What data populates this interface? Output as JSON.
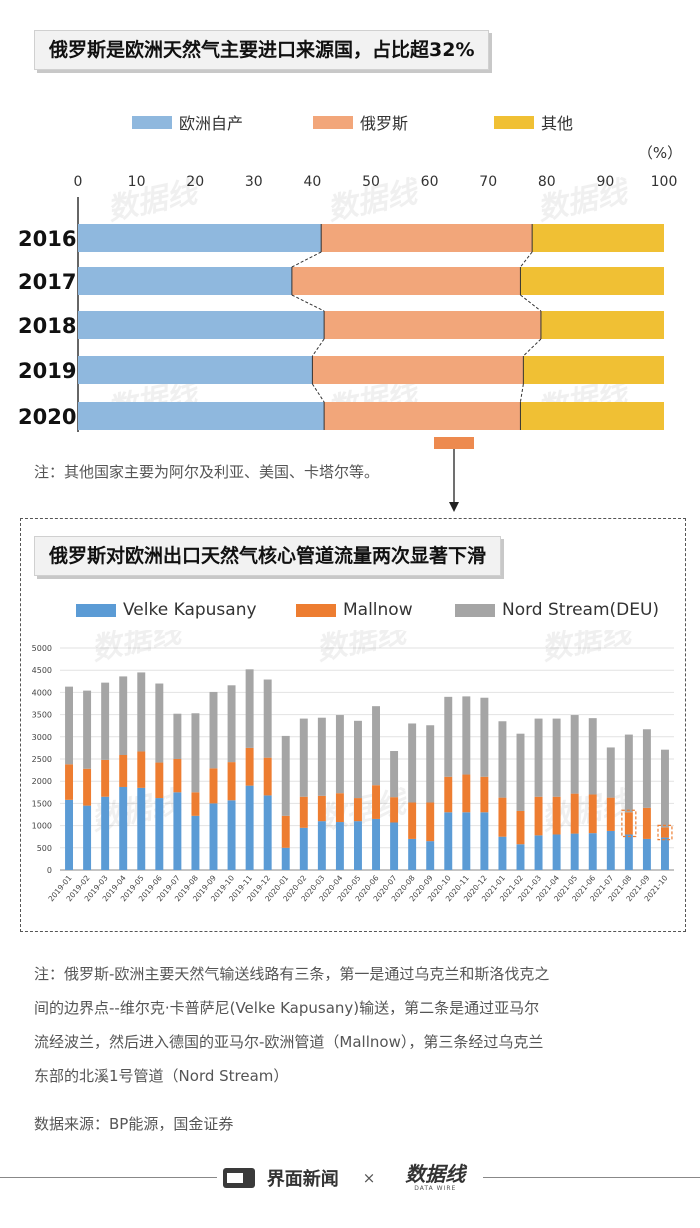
{
  "chart_data": [
    {
      "type": "bar",
      "orientation": "horizontal",
      "stacked": true,
      "title": "俄罗斯是欧洲天然气主要进口来源国，占比超32%",
      "unit": "（%）",
      "categories": [
        "2016",
        "2017",
        "2018",
        "2019",
        "2020"
      ],
      "xlim": [
        0,
        100
      ],
      "xticks": [
        0,
        10,
        20,
        30,
        40,
        50,
        60,
        70,
        80,
        90,
        100
      ],
      "series": [
        {
          "name": "欧洲自产",
          "color": "#8fb8de",
          "values": [
            41.5,
            36.5,
            42.0,
            40.0,
            42.0
          ]
        },
        {
          "name": "俄罗斯",
          "color": "#f2a67a",
          "values": [
            36.0,
            39.0,
            37.0,
            36.0,
            33.5
          ]
        },
        {
          "name": "其他",
          "color": "#f0c034",
          "values": [
            22.5,
            24.5,
            21.0,
            24.0,
            24.5
          ]
        }
      ],
      "legend_position": "top",
      "note": "注：其他国家主要为阿尔及利亚、美国、卡塔尔等。"
    },
    {
      "type": "bar",
      "stacked": true,
      "title": "俄罗斯对欧洲出口天然气核心管道流量两次显著下滑",
      "categories": [
        "2019-01",
        "2019-02",
        "2019-03",
        "2019-04",
        "2019-05",
        "2019-06",
        "2019-07",
        "2019-08",
        "2019-09",
        "2019-10",
        "2019-11",
        "2019-12",
        "2020-01",
        "2020-02",
        "2020-03",
        "2020-04",
        "2020-05",
        "2020-06",
        "2020-07",
        "2020-08",
        "2020-09",
        "2020-10",
        "2020-11",
        "2020-12",
        "2021-01",
        "2021-02",
        "2021-03",
        "2021-04",
        "2021-05",
        "2021-06",
        "2021-07",
        "2021-08",
        "2021-09",
        "2021-10"
      ],
      "ylim": [
        0,
        5000
      ],
      "yticks": [
        0,
        500,
        1000,
        1500,
        2000,
        2500,
        3000,
        3500,
        4000,
        4500,
        5000
      ],
      "series": [
        {
          "name": "Velke Kapusany",
          "color": "#5b9bd5",
          "values": [
            1580,
            1450,
            1650,
            1870,
            1850,
            1620,
            1750,
            1220,
            1500,
            1570,
            1900,
            1680,
            500,
            950,
            1100,
            1080,
            1100,
            1150,
            1070,
            700,
            650,
            1300,
            1300,
            1300,
            750,
            580,
            780,
            800,
            820,
            830,
            880,
            800,
            700,
            730
          ]
        },
        {
          "name": "Mallnow",
          "color": "#ed7d31",
          "values": [
            800,
            830,
            830,
            720,
            820,
            800,
            750,
            530,
            790,
            860,
            850,
            850,
            720,
            700,
            570,
            650,
            520,
            760,
            570,
            820,
            870,
            800,
            850,
            800,
            880,
            750,
            870,
            850,
            900,
            870,
            750,
            500,
            700,
            230
          ]
        },
        {
          "name": "Nord Stream(DEU)",
          "color": "#a5a5a5",
          "values": [
            1750,
            1760,
            1740,
            1770,
            1780,
            1780,
            1020,
            1780,
            1720,
            1730,
            1770,
            1760,
            1800,
            1760,
            1760,
            1760,
            1740,
            1780,
            1040,
            1780,
            1740,
            1800,
            1760,
            1780,
            1720,
            1740,
            1760,
            1760,
            1770,
            1720,
            1130,
            1750,
            1770,
            1750
          ]
        }
      ],
      "legend_position": "top",
      "highlighted_categories": [
        "2021-08",
        "2021-10"
      ],
      "note": "注：俄罗斯-欧洲主要天然气输送线路有三条，第一是通过乌克兰和斯洛伐克之间的边界点--维尔克·卡普萨尼(Velke Kapusany)输送，第二条是通过亚马尔流经波兰，然后进入德国的亚马尔-欧洲管道（Mallnow），第三条经过乌克兰东部的北溪1号管道（Nord Stream）"
    }
  ],
  "note_lines": [
    "注：俄罗斯-欧洲主要天然气输送线路有三条，第一是通过乌克兰和斯洛伐克之",
    "间的边界点--维尔克·卡普萨尼(Velke Kapusany)输送，第二条是通过亚马尔",
    "流经波兰，然后进入德国的亚马尔-欧洲管道（Mallnow），第三条经过乌克兰",
    "东部的北溪1号管道（Nord Stream）"
  ],
  "source": "数据来源：BP能源，国金证券",
  "footer": {
    "brand": "界面新闻",
    "separator": "×",
    "partner": "数据线",
    "partner_sub": "DATA WIRE"
  },
  "watermark": "数据线"
}
